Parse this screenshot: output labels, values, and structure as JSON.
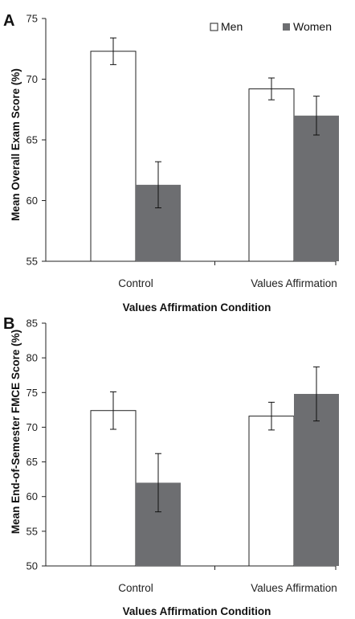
{
  "chart_data": [
    {
      "type": "bar",
      "panel_label": "A",
      "categories": [
        "Control",
        "Values Affirmation"
      ],
      "series": [
        {
          "name": "Men",
          "values": [
            72.3,
            69.2
          ],
          "errors": [
            1.1,
            0.9
          ],
          "color": "#ffffff"
        },
        {
          "name": "Women",
          "values": [
            61.3,
            67.0
          ],
          "errors": [
            1.9,
            1.6
          ],
          "color": "#6d6e71"
        }
      ],
      "ylabel": "Mean Overall Exam Score (%)",
      "xlabel": "Values Affirmation Condition",
      "ylim": [
        55,
        75
      ],
      "yticks": [
        55,
        60,
        65,
        70,
        75
      ],
      "legend_position": "top-right",
      "grid": false
    },
    {
      "type": "bar",
      "panel_label": "B",
      "categories": [
        "Control",
        "Values Affirmation"
      ],
      "series": [
        {
          "name": "Men",
          "values": [
            72.4,
            71.6
          ],
          "errors": [
            2.7,
            2.0
          ],
          "color": "#ffffff"
        },
        {
          "name": "Women",
          "values": [
            62.0,
            74.8
          ],
          "errors": [
            4.2,
            3.9
          ],
          "color": "#6d6e71"
        }
      ],
      "ylabel": "Mean End-of-Semester FMCE Score (%)",
      "xlabel": "Values Affirmation Condition",
      "ylim": [
        50,
        85
      ],
      "yticks": [
        50,
        55,
        60,
        65,
        70,
        75,
        80,
        85
      ],
      "grid": false
    }
  ]
}
